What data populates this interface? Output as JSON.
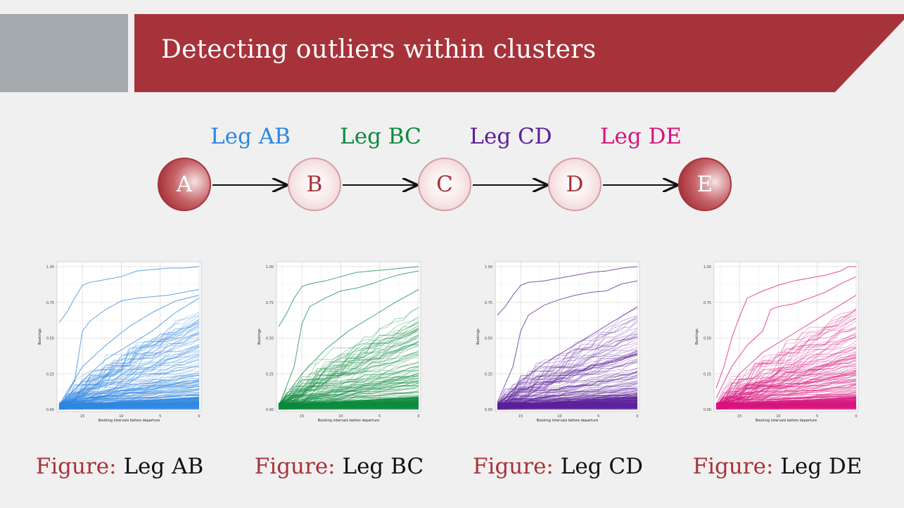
{
  "title": "Detecting outliers within clusters",
  "colors": {
    "brand": "#a7333a",
    "gray": "#a5aaae",
    "leg_ab": "#2e86e0",
    "leg_bc": "#0a8a3c",
    "leg_cd": "#5a1e9a",
    "leg_de": "#d6137c"
  },
  "route": {
    "nodes": [
      "A",
      "B",
      "C",
      "D",
      "E"
    ],
    "legs": [
      {
        "label": "Leg AB",
        "color": "#2e86e0"
      },
      {
        "label": "Leg BC",
        "color": "#0a8a3c"
      },
      {
        "label": "Leg CD",
        "color": "#5a1e9a"
      },
      {
        "label": "Leg DE",
        "color": "#d6137c"
      }
    ]
  },
  "captions": [
    {
      "prefix": "Figure:",
      "name": "Leg AB"
    },
    {
      "prefix": "Figure:",
      "name": "Leg BC"
    },
    {
      "prefix": "Figure:",
      "name": "Leg CD"
    },
    {
      "prefix": "Figure:",
      "name": "Leg DE"
    }
  ],
  "chart_data": [
    {
      "type": "line",
      "xlabel": "Booking intervals before departure",
      "ylabel": "Bookings",
      "xlim": [
        18,
        0
      ],
      "ylim": [
        0,
        1
      ],
      "x_ticks": [
        15,
        10,
        5,
        0
      ],
      "y_ticks": [
        "0.00",
        "0.25",
        "0.50",
        "0.75",
        "1.00"
      ],
      "grid": true,
      "color": "#2e86e0",
      "series": [
        {
          "x": [
            18,
            17,
            16,
            15,
            14,
            12,
            10,
            8,
            6,
            4,
            2,
            0
          ],
          "values": [
            0.61,
            0.68,
            0.78,
            0.87,
            0.89,
            0.91,
            0.93,
            0.97,
            0.98,
            0.99,
            0.99,
            1.0
          ]
        },
        {
          "x": [
            18,
            16,
            15,
            14,
            12,
            10,
            8,
            6,
            4,
            2,
            0
          ],
          "values": [
            0.0,
            0.2,
            0.55,
            0.62,
            0.7,
            0.76,
            0.78,
            0.79,
            0.8,
            0.82,
            0.84
          ]
        },
        {
          "x": [
            18,
            15,
            12,
            9,
            6,
            3,
            0
          ],
          "values": [
            0.03,
            0.3,
            0.45,
            0.58,
            0.68,
            0.76,
            0.8
          ]
        },
        {
          "x": [
            18,
            15,
            12,
            9,
            6,
            3,
            0
          ],
          "values": [
            0.02,
            0.2,
            0.35,
            0.45,
            0.55,
            0.68,
            0.78
          ]
        }
      ]
    },
    {
      "type": "line",
      "xlabel": "Booking intervals before departure",
      "ylabel": "Bookings",
      "xlim": [
        18,
        0
      ],
      "ylim": [
        0,
        1
      ],
      "x_ticks": [
        15,
        10,
        5,
        0
      ],
      "y_ticks": [
        "0.00",
        "0.25",
        "0.50",
        "0.75",
        "1.00"
      ],
      "grid": true,
      "color": "#0a8a3c",
      "series": [
        {
          "x": [
            18,
            17,
            16,
            15,
            14,
            12,
            10,
            8,
            6,
            4,
            2,
            0
          ],
          "values": [
            0.58,
            0.67,
            0.78,
            0.86,
            0.88,
            0.9,
            0.93,
            0.96,
            0.97,
            0.98,
            0.99,
            1.0
          ]
        },
        {
          "x": [
            18,
            16,
            15,
            14,
            12,
            10,
            8,
            6,
            4,
            2,
            0
          ],
          "values": [
            0.02,
            0.3,
            0.6,
            0.72,
            0.78,
            0.83,
            0.85,
            0.88,
            0.92,
            0.95,
            0.97
          ]
        },
        {
          "x": [
            18,
            15,
            12,
            9,
            6,
            3,
            0
          ],
          "values": [
            0.03,
            0.25,
            0.42,
            0.55,
            0.65,
            0.75,
            0.84
          ]
        }
      ]
    },
    {
      "type": "line",
      "xlabel": "Booking intervals before departure",
      "ylabel": "Bookings",
      "xlim": [
        18,
        0
      ],
      "ylim": [
        0,
        1
      ],
      "x_ticks": [
        15,
        10,
        5,
        0
      ],
      "y_ticks": [
        "0.00",
        "0.25",
        "0.50",
        "0.75",
        "1.00"
      ],
      "grid": true,
      "color": "#5a1e9a",
      "series": [
        {
          "x": [
            18,
            17,
            16,
            15,
            14,
            12,
            10,
            8,
            6,
            4,
            2,
            0
          ],
          "values": [
            0.66,
            0.72,
            0.8,
            0.87,
            0.89,
            0.9,
            0.92,
            0.94,
            0.96,
            0.97,
            0.99,
            1.0
          ]
        },
        {
          "x": [
            18,
            16,
            15,
            14,
            12,
            10,
            8,
            6,
            4,
            2,
            0
          ],
          "values": [
            0.05,
            0.3,
            0.55,
            0.66,
            0.73,
            0.77,
            0.8,
            0.82,
            0.83,
            0.88,
            0.9
          ]
        },
        {
          "x": [
            18,
            15,
            12,
            9,
            6,
            3,
            0
          ],
          "values": [
            0.02,
            0.2,
            0.32,
            0.42,
            0.52,
            0.62,
            0.72
          ]
        }
      ]
    },
    {
      "type": "line",
      "xlabel": "Booking intervals before departure",
      "ylabel": "Bookings",
      "xlim": [
        18,
        0
      ],
      "ylim": [
        0,
        1
      ],
      "x_ticks": [
        15,
        10,
        5,
        0
      ],
      "y_ticks": [
        "0.00",
        "0.25",
        "0.50",
        "0.75",
        "1.00"
      ],
      "grid": true,
      "color": "#d6137c",
      "series": [
        {
          "x": [
            18,
            17,
            16,
            15,
            14,
            12,
            10,
            8,
            6,
            4,
            2,
            1,
            0
          ],
          "values": [
            0.15,
            0.3,
            0.5,
            0.65,
            0.78,
            0.83,
            0.87,
            0.9,
            0.92,
            0.94,
            0.97,
            1.0,
            1.0
          ]
        },
        {
          "x": [
            18,
            16,
            14,
            12,
            11,
            10,
            8,
            6,
            4,
            2,
            0
          ],
          "values": [
            0.08,
            0.3,
            0.45,
            0.55,
            0.7,
            0.72,
            0.74,
            0.78,
            0.82,
            0.88,
            0.93
          ]
        },
        {
          "x": [
            18,
            15,
            12,
            9,
            6,
            3,
            0
          ],
          "values": [
            0.02,
            0.25,
            0.4,
            0.5,
            0.6,
            0.7,
            0.8
          ]
        }
      ]
    }
  ]
}
